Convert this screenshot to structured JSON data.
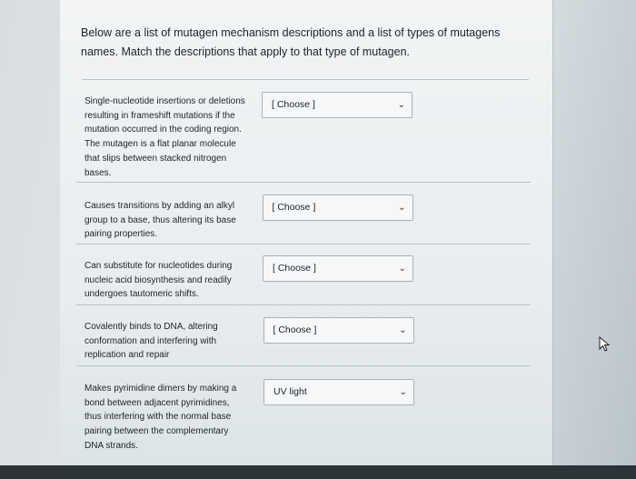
{
  "instructions": [
    "Below are a list of mutagen mechanism descriptions and a list of types of mutagens",
    "names.  Match the descriptions that apply to that type of mutagen."
  ],
  "items": [
    {
      "description": [
        "Single-nucleotide insertions or deletions",
        "resulting in frameshift mutations if the",
        "mutation occurred in the coding region.",
        "The mutagen is a flat planar molecule",
        "that slips between stacked nitrogen",
        "bases."
      ],
      "selected": "[ Choose ]"
    },
    {
      "description": [
        "Causes transitions by adding an alkyl",
        "group to a base, thus altering its base",
        "pairing properties."
      ],
      "selected": "[ Choose ]"
    },
    {
      "description": [
        "Can substitute for nucleotides during",
        "nucleic acid biosynthesis and readily",
        "undergoes tautomeric shifts."
      ],
      "selected": "[ Choose ]"
    },
    {
      "description": [
        "Covalently binds to DNA, altering",
        "conformation and interfering with",
        "replication and repair"
      ],
      "selected": "[ Choose ]"
    },
    {
      "description": [
        "Makes pyrimidine dimers by making a",
        "bond between adjacent pyrimidines,",
        "thus interfering with the normal base",
        "pairing between the complementary",
        "DNA strands."
      ],
      "selected": "UV light"
    }
  ],
  "icons": {
    "dropdown": "chevron-down-icon",
    "cursor": "mouse-pointer-icon"
  }
}
